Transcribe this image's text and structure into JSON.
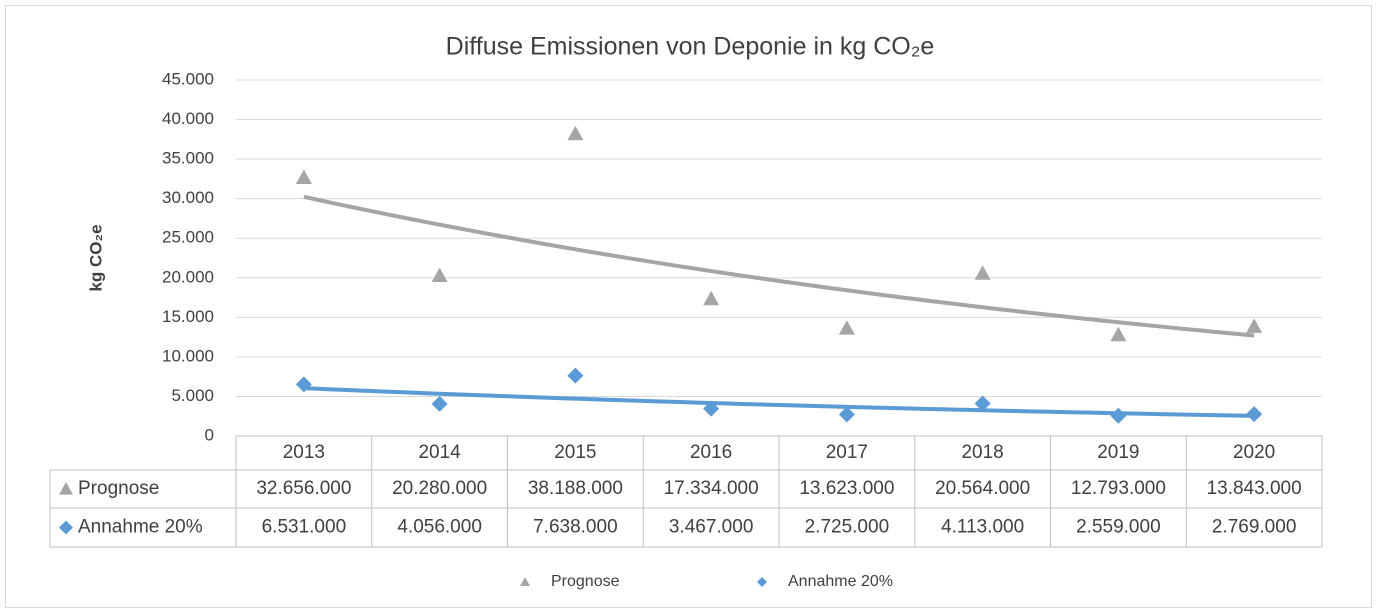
{
  "chart_data": {
    "type": "scatter",
    "title": "Diffuse Emissionen von Deponie in kg CO₂e",
    "y_label": "kg CO₂e",
    "categories": [
      "2013",
      "2014",
      "2015",
      "2016",
      "2017",
      "2018",
      "2019",
      "2020"
    ],
    "series": [
      {
        "name": "Prognose",
        "color": "#a5a5a5",
        "marker": "triangle",
        "trendline": "exponential",
        "values": [
          32656000,
          20280000,
          38188000,
          17334000,
          13623000,
          20564000,
          12793000,
          13843000
        ],
        "value_labels": [
          "32.656.000",
          "20.280.000",
          "38.188.000",
          "17.334.000",
          "13.623.000",
          "20.564.000",
          "12.793.000",
          "13.843.000"
        ]
      },
      {
        "name": "Annahme 20%",
        "color": "#5b9bd5",
        "marker": "diamond",
        "trendline": "exponential",
        "values": [
          6531000,
          4056000,
          7638000,
          3467000,
          2725000,
          4113000,
          2559000,
          2769000
        ],
        "value_labels": [
          "6.531.000",
          "4.056.000",
          "7.638.000",
          "3.467.000",
          "2.725.000",
          "4.113.000",
          "2.559.000",
          "2.769.000"
        ]
      }
    ],
    "ylim": [
      0,
      45000000
    ],
    "yticks": [
      0,
      {
        "value": 5000000,
        "label": "5.000"
      },
      {
        "value": 10000000,
        "label": "10.000"
      },
      {
        "value": 15000000,
        "label": "15.000"
      },
      {
        "value": 20000000,
        "label": "20.000"
      },
      {
        "value": 25000000,
        "label": "25.000"
      },
      {
        "value": 30000000,
        "label": "30.000"
      },
      {
        "value": 35000000,
        "label": "35.000"
      },
      {
        "value": 40000000,
        "label": "40.000"
      },
      {
        "value": 45000000,
        "label": "45.000"
      }
    ],
    "grid": true,
    "data_table": true,
    "legend": "bottom"
  }
}
